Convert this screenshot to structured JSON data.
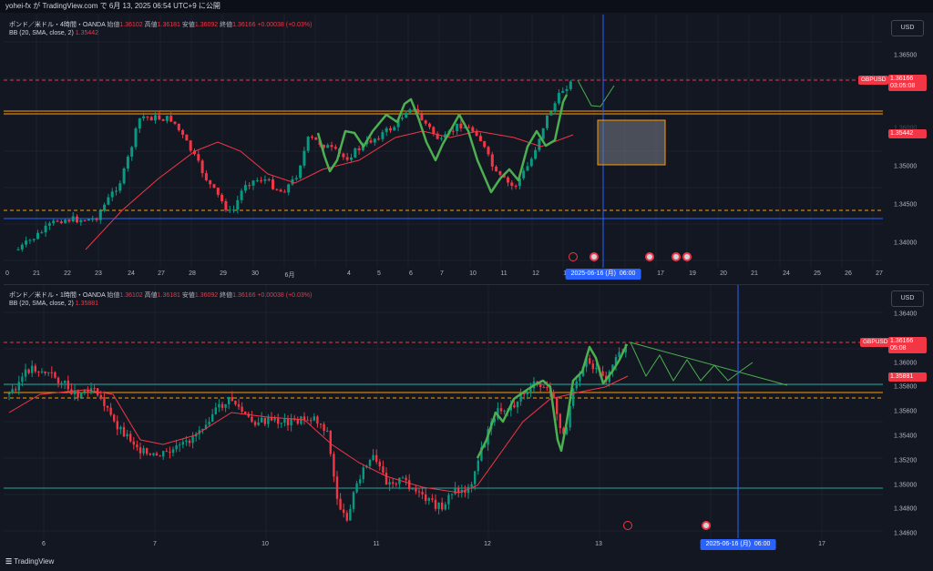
{
  "top_bar": {
    "text": "yohei-fx が TradingView.com で 6月 13, 2025 06:54 UTC+9 に公開"
  },
  "footer": {
    "logo_text": "TradingView"
  },
  "colors": {
    "bg": "#131722",
    "up": "#089981",
    "down": "#f23645",
    "bb": "#f23645",
    "highlight": "#4caf50",
    "level": "#ff9800",
    "hline": "#2962ff"
  },
  "top": {
    "title": "ポンド／米ドル・4時間・OANDA",
    "o_label": "始値",
    "o": "1.36102",
    "h_label": "高値",
    "h": "1.36181",
    "l_label": "安値",
    "l": "1.36092",
    "c_label": "終値",
    "c": "1.36166",
    "change": "+0.00038 (+0.03%)",
    "indicator": "BB (20, SMA, close, 2)",
    "indicator_value": "1.35442",
    "currency": "USD",
    "symbol": "GBPUSD",
    "price_ticks": [
      "1.36500",
      "1.36000",
      "1.35500",
      "1.35000",
      "1.34500",
      "1.34000"
    ],
    "price_label": "1.36166",
    "price_sub": "03:05:08",
    "bb_label": "1.35442",
    "dates": [
      "0",
      "21",
      "22",
      "23",
      "24",
      "27",
      "28",
      "29",
      "30",
      "6月",
      "4",
      "5",
      "6",
      "7",
      "10",
      "11",
      "12",
      "13",
      "16",
      "17",
      "18",
      "19",
      "20",
      "21",
      "24",
      "25",
      "26",
      "27"
    ],
    "date_pill": {
      "date": "2025-06-16 (月)",
      "time": "06:00"
    }
  },
  "bottom": {
    "title": "ポンド／米ドル・1時間・OANDA",
    "o_label": "始値",
    "o": "1.36102",
    "h_label": "高値",
    "h": "1.36181",
    "l_label": "安値",
    "l": "1.36092",
    "c_label": "終値",
    "c": "1.36166",
    "change": "+0.00038 (+0.03%)",
    "indicator": "BB (20, SMA, close, 2)",
    "indicator_value": "1.35881",
    "currency": "USD",
    "symbol": "GBPUSD",
    "price_ticks": [
      "1.36400",
      "1.36200",
      "1.36000",
      "1.35800",
      "1.35600",
      "1.35400",
      "1.35200",
      "1.35000",
      "1.34800",
      "1.34600"
    ],
    "price_label": "1.36166",
    "price_sub": "05:08",
    "bb_label": "1.35881",
    "dates": [
      "6",
      "7",
      "10",
      "11",
      "12",
      "13",
      "17"
    ],
    "date_pill": {
      "date": "2025-06-16 (月)",
      "time": "06:00"
    }
  }
}
